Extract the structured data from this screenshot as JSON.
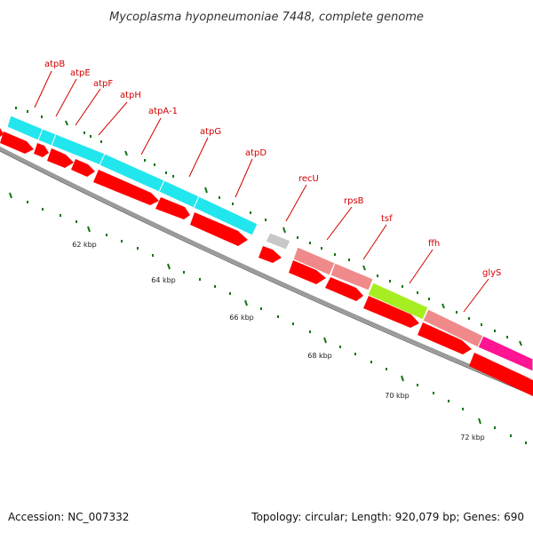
{
  "title": "Mycoplasma hyopneumoniae 7448, complete genome",
  "footer": {
    "accession": "Accession: NC_007332",
    "topology": "Topology: circular; Length: 920,079 bp; Genes: 690"
  },
  "colors": {
    "gene_label": "#d40000",
    "cds": "#ff0000",
    "cog_cyan": "#22e6ee",
    "cog_gray": "#c8c8c8",
    "cog_salmon": "#f08a8a",
    "cog_green": "#a6ee22",
    "cog_magenta": "#ff1493",
    "ticks": "#117711",
    "backbone": "#888888"
  },
  "genes": [
    {
      "label": "atpB"
    },
    {
      "label": "atpE"
    },
    {
      "label": "atpF"
    },
    {
      "label": "atpH"
    },
    {
      "label": "atpA-1"
    },
    {
      "label": "atpG"
    },
    {
      "label": "atpD"
    },
    {
      "label": "recU"
    },
    {
      "label": "rpsB"
    },
    {
      "label": "tsf"
    },
    {
      "label": "ffh"
    },
    {
      "label": "glyS"
    }
  ],
  "kbp_labels": [
    "62 kbp",
    "64 kbp",
    "66 kbp",
    "68 kbp",
    "70 kbp",
    "72 kbp"
  ]
}
